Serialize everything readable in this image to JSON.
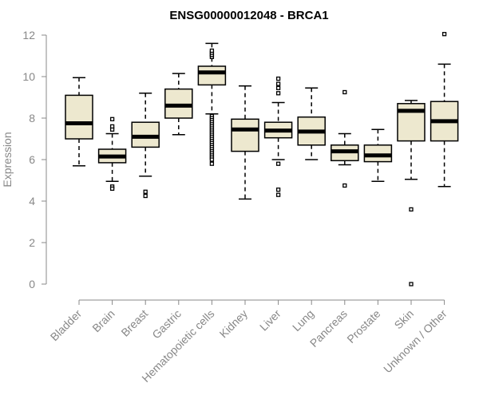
{
  "chart_data": {
    "type": "boxplot",
    "title": "ENSG00000012048 - BRCA1",
    "ylabel": "Expression",
    "xlabel": "",
    "ylim": [
      0,
      12
    ],
    "yticks": [
      0,
      2,
      4,
      6,
      8,
      10,
      12
    ],
    "grid": false,
    "colors": {
      "box_fill": "#ede8cf",
      "stroke": "#000000",
      "axis": "#888888"
    },
    "categories": [
      "Bladder",
      "Brain",
      "Breast",
      "Gastric",
      "Hematopoietic cells",
      "Kidney",
      "Liver",
      "Lung",
      "Pancreas",
      "Prostate",
      "Skin",
      "Unknown / Other"
    ],
    "boxes": [
      {
        "name": "Bladder",
        "min": 5.7,
        "q1": 7.0,
        "median": 7.75,
        "q3": 9.1,
        "max": 9.95,
        "outliers": []
      },
      {
        "name": "Brain",
        "min": 4.95,
        "q1": 5.85,
        "median": 6.15,
        "q3": 6.5,
        "max": 7.25,
        "outliers": [
          7.45,
          7.6,
          7.95,
          4.7,
          4.6
        ]
      },
      {
        "name": "Breast",
        "min": 5.2,
        "q1": 6.6,
        "median": 7.1,
        "q3": 7.8,
        "max": 9.2,
        "outliers": [
          4.45,
          4.25
        ]
      },
      {
        "name": "Gastric",
        "min": 7.2,
        "q1": 8.0,
        "median": 8.6,
        "q3": 9.4,
        "max": 10.15,
        "outliers": []
      },
      {
        "name": "Hematopoietic cells",
        "min": 8.2,
        "q1": 9.6,
        "median": 10.2,
        "q3": 10.5,
        "max": 11.6,
        "outliers": [
          10.95,
          11.05,
          11.15,
          11.25,
          8.1,
          8.0,
          7.9,
          7.8,
          7.7,
          7.6,
          7.5,
          7.4,
          7.3,
          7.2,
          7.1,
          7.0,
          6.9,
          6.8,
          6.7,
          6.6,
          6.5,
          6.4,
          6.3,
          6.2,
          6.1,
          6.0,
          5.8
        ]
      },
      {
        "name": "Kidney",
        "min": 4.1,
        "q1": 6.4,
        "median": 7.45,
        "q3": 7.95,
        "max": 9.55,
        "outliers": []
      },
      {
        "name": "Liver",
        "min": 6.0,
        "q1": 7.05,
        "median": 7.4,
        "q3": 7.8,
        "max": 8.75,
        "outliers": [
          9.2,
          9.45,
          9.65,
          9.9,
          5.8,
          4.55,
          4.3
        ]
      },
      {
        "name": "Lung",
        "min": 6.0,
        "q1": 6.7,
        "median": 7.35,
        "q3": 8.05,
        "max": 9.45,
        "outliers": []
      },
      {
        "name": "Pancreas",
        "min": 5.75,
        "q1": 5.95,
        "median": 6.4,
        "q3": 6.7,
        "max": 7.25,
        "outliers": [
          9.25,
          4.75
        ]
      },
      {
        "name": "Prostate",
        "min": 4.95,
        "q1": 5.9,
        "median": 6.2,
        "q3": 6.7,
        "max": 7.45,
        "outliers": []
      },
      {
        "name": "Skin",
        "min": 5.05,
        "q1": 6.9,
        "median": 8.35,
        "q3": 8.7,
        "max": 8.85,
        "outliers": [
          3.6,
          0.0
        ]
      },
      {
        "name": "Unknown / Other",
        "min": 4.7,
        "q1": 6.9,
        "median": 7.85,
        "q3": 8.8,
        "max": 10.6,
        "outliers": [
          12.05
        ]
      }
    ]
  }
}
